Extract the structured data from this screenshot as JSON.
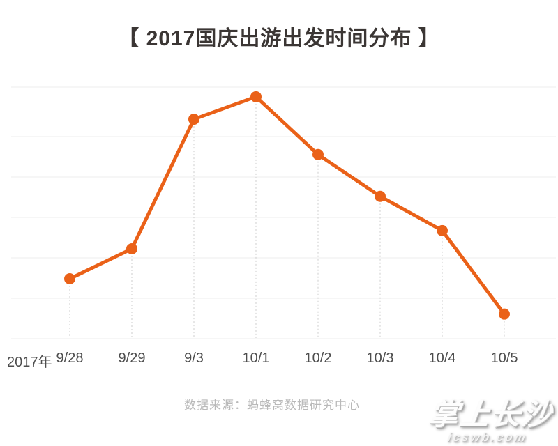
{
  "title": "【 2017国庆出游出发时间分布 】",
  "source": "数据来源：蚂蜂窝数据研究中心",
  "watermark": {
    "name": "掌上长沙",
    "url": "icswb.com"
  },
  "colors": {
    "accent": "#ea6118",
    "title_text": "#3b3634",
    "axis_text": "#4d4d4d",
    "muted_text": "#b9b9b9",
    "gridline": "#ededed",
    "drop_line": "#d8d8d8"
  },
  "chart_data": {
    "type": "line",
    "title": "2017国庆出游出发时间分布",
    "x_prefix": "2017年",
    "categories": [
      "9/28",
      "9/29",
      "9/3",
      "10/1",
      "10/2",
      "10/3",
      "10/4",
      "10/5"
    ],
    "values": [
      5.6,
      8.4,
      20.5,
      22.6,
      17.2,
      13.3,
      10.1,
      2.3
    ],
    "values_note": "y-axis is unlabeled; values are percent shares estimated from point heights between gridlines",
    "xlabel": "",
    "ylabel": "",
    "ylim": [
      0,
      23.5
    ],
    "grid": "horizontal",
    "legend": "none",
    "marker": "circle"
  }
}
